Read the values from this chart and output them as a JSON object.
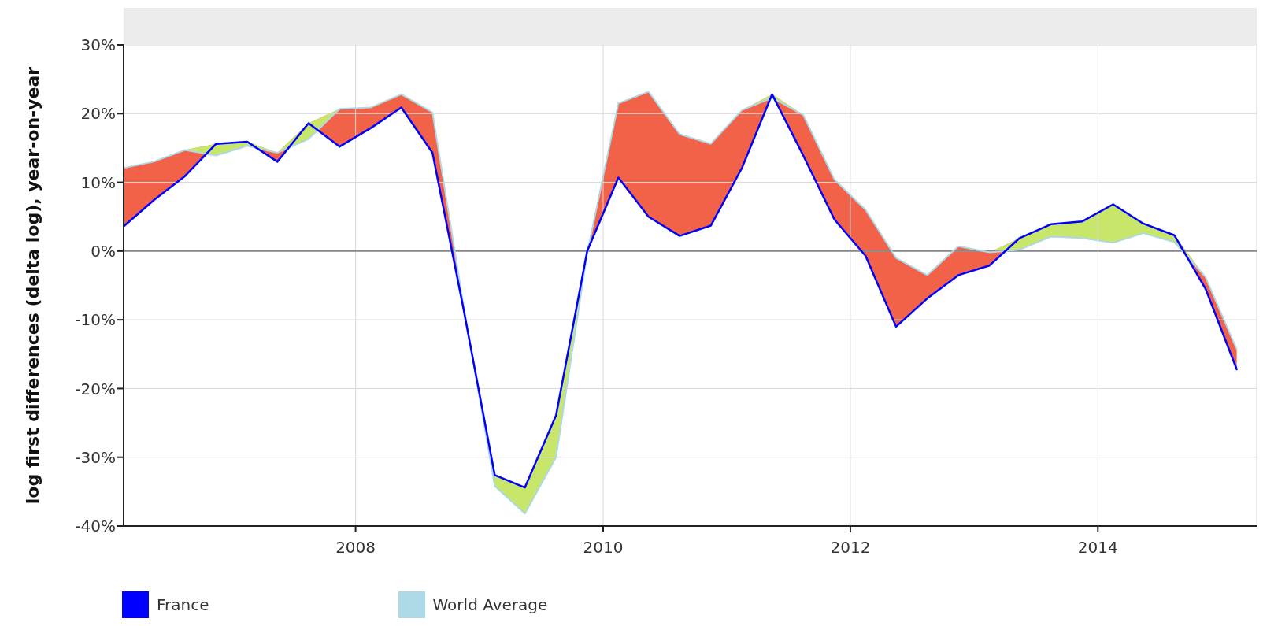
{
  "chart_data": {
    "type": "line",
    "ylabel": "log first differences (delta log), year-on-year",
    "x": [
      "2006-02-15",
      "2006-05-15",
      "2006-08-15",
      "2006-11-15",
      "2007-02-15",
      "2007-05-15",
      "2007-08-15",
      "2007-11-15",
      "2008-02-15",
      "2008-05-15",
      "2008-08-15",
      "2008-11-15",
      "2009-02-15",
      "2009-05-15",
      "2009-08-15",
      "2009-11-15",
      "2010-02-15",
      "2010-05-15",
      "2010-08-15",
      "2010-11-15",
      "2011-02-15",
      "2011-05-15",
      "2011-08-15",
      "2011-11-15",
      "2012-02-15",
      "2012-05-15",
      "2012-08-15",
      "2012-11-15",
      "2013-02-15",
      "2013-05-15",
      "2013-08-15",
      "2013-11-15",
      "2014-02-15",
      "2014-05-15",
      "2014-08-15",
      "2014-11-15",
      "2015-02-15"
    ],
    "series": [
      {
        "name": "France",
        "color": "#0000ff",
        "values": [
          3.6,
          7.4,
          10.9,
          15.6,
          15.9,
          13.0,
          18.6,
          15.2,
          17.9,
          20.9,
          14.3,
          -8.5,
          -32.6,
          -34.4,
          -23.9,
          0.0,
          10.7,
          5.0,
          2.2,
          3.7,
          12.1,
          22.8,
          13.9,
          4.6,
          -0.7,
          -11.0,
          -6.9,
          -3.5,
          -2.1,
          1.9,
          3.9,
          4.3,
          6.8,
          4.0,
          2.3,
          -5.5,
          -17.2
        ],
        "lower": [
          3.6,
          7.4,
          10.9,
          15.6,
          15.9,
          13.0,
          18.6,
          15.2,
          17.9,
          20.9,
          14.3,
          -8.5,
          -32.6,
          -34.4,
          -23.9,
          0.0,
          10.7,
          5.0,
          2.2,
          3.7,
          12.1,
          22.8,
          13.9,
          4.6,
          -0.7,
          -11.0,
          -6.9,
          -3.5,
          -2.1,
          1.9,
          3.9,
          4.3,
          6.8,
          4.0,
          2.3,
          -5.5,
          -17.2
        ],
        "upper": [
          12.1,
          13.0,
          14.7,
          15.6,
          15.9,
          14.3,
          18.6,
          20.7,
          20.9,
          22.8,
          20.2,
          -8.0,
          -32.6,
          -34.4,
          -23.9,
          0.0,
          21.5,
          23.2,
          17.0,
          15.6,
          20.5,
          22.8,
          19.8,
          10.4,
          6.0,
          -1.0,
          -3.5,
          0.7,
          -0.2,
          1.9,
          3.9,
          4.3,
          6.8,
          4.0,
          2.3,
          -3.8,
          -14.3
        ]
      },
      {
        "name": "World Average",
        "color": "#add8e6",
        "values": [
          12.1,
          13.0,
          14.7,
          13.9,
          15.3,
          14.3,
          16.3,
          20.7,
          20.9,
          22.8,
          20.2,
          -8.0,
          -34.2,
          -38.2,
          -30.0,
          -0.3,
          21.5,
          23.2,
          17.0,
          15.6,
          20.5,
          22.3,
          19.8,
          10.4,
          6.0,
          -1.0,
          -3.5,
          0.7,
          -0.2,
          0.2,
          2.1,
          1.9,
          1.2,
          2.6,
          1.3,
          -3.8,
          -14.3
        ],
        "lower": [
          12.1,
          13.0,
          14.7,
          13.9,
          15.3,
          14.3,
          16.3,
          20.7,
          20.9,
          22.8,
          20.2,
          -8.0,
          -34.2,
          -38.2,
          -30.0,
          -0.3,
          21.5,
          23.2,
          17.0,
          15.6,
          20.5,
          22.3,
          19.8,
          10.4,
          6.0,
          -1.0,
          -3.5,
          0.7,
          -0.2,
          0.2,
          2.1,
          1.9,
          1.2,
          2.6,
          1.3,
          -3.8,
          -14.3
        ],
        "upper": [
          12.1,
          13.0,
          14.7,
          15.6,
          15.9,
          14.3,
          18.6,
          20.7,
          20.9,
          22.8,
          20.2,
          -8.0,
          -32.6,
          -34.4,
          -23.9,
          0.0,
          21.5,
          23.2,
          17.0,
          15.6,
          20.5,
          22.8,
          19.8,
          10.4,
          6.0,
          -1.0,
          -3.5,
          0.7,
          -0.2,
          1.9,
          3.9,
          4.3,
          6.8,
          4.0,
          2.3,
          -3.8,
          -14.3
        ]
      }
    ],
    "xlim": [
      "2006-02-15",
      "2015-04-15"
    ],
    "xticks": [
      "2008",
      "2010",
      "2012",
      "2014"
    ],
    "ylim": [
      -40,
      30
    ],
    "yticks": [
      {
        "value": -40,
        "label": "-40%"
      },
      {
        "value": -30,
        "label": "-30%"
      },
      {
        "value": -20,
        "label": "-20%"
      },
      {
        "value": -10,
        "label": "-10%"
      },
      {
        "value": 0,
        "label": "0%"
      },
      {
        "value": 10,
        "label": "10%"
      },
      {
        "value": 20,
        "label": "20%"
      },
      {
        "value": 30,
        "label": "30%"
      }
    ],
    "ref_lines": [
      {
        "axis": "y",
        "value": 0,
        "color": "#888888"
      }
    ],
    "grid": true,
    "legend": "bottom left"
  }
}
